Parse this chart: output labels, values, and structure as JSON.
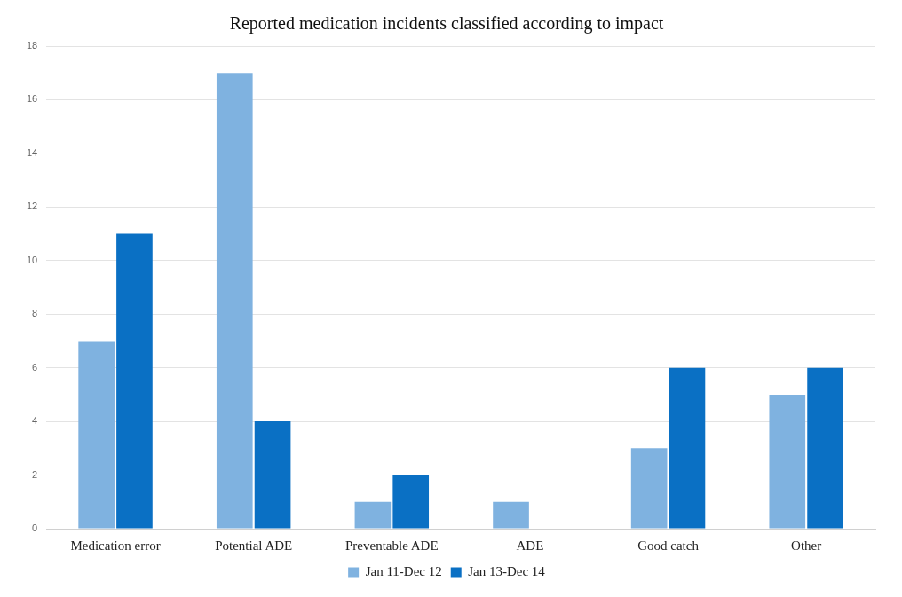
{
  "chart_data": {
    "type": "bar",
    "title": "Reported medication incidents classified according to impact",
    "categories": [
      "Medication error",
      "Potential ADE",
      "Preventable ADE",
      "ADE",
      "Good catch",
      "Other"
    ],
    "series": [
      {
        "name": "Jan 11-Dec 12",
        "color": "#7fb2e0",
        "values": [
          7,
          17,
          1,
          1,
          3,
          5
        ]
      },
      {
        "name": "Jan 13-Dec 14",
        "color": "#0a70c4",
        "values": [
          11,
          4,
          2,
          0,
          6,
          6
        ]
      }
    ],
    "ylim": [
      0,
      18
    ],
    "yticks": [
      0,
      2,
      4,
      6,
      8,
      10,
      12,
      14,
      16,
      18
    ],
    "grid": "y",
    "legend": "bottom"
  }
}
